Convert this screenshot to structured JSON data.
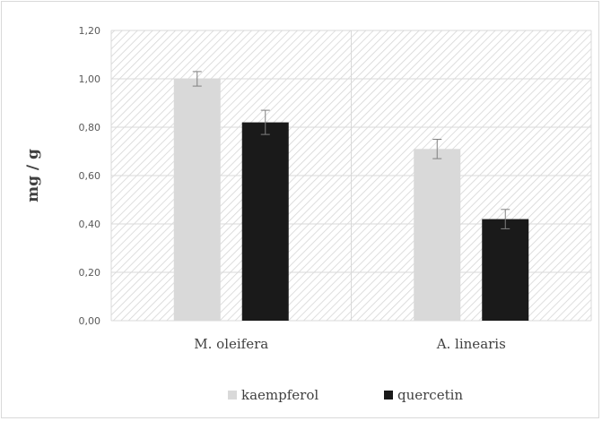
{
  "chart_data": {
    "type": "bar",
    "title": "",
    "xlabel": "",
    "ylabel": "mg / g",
    "ylim": [
      0,
      1.2
    ],
    "yticks": [
      "0,00",
      "0,20",
      "0,40",
      "0,60",
      "0,80",
      "1,00",
      "1,20"
    ],
    "categories": [
      "M. oleifera",
      "A. linearis"
    ],
    "series": [
      {
        "name": "kaempferol",
        "color": "#d9d9d9",
        "values": [
          1.0,
          0.71
        ],
        "errors": [
          0.03,
          0.04
        ]
      },
      {
        "name": "quercetin",
        "color": "#1a1a1a",
        "values": [
          0.82,
          0.42
        ],
        "errors": [
          0.05,
          0.04
        ]
      }
    ],
    "grid": true,
    "background_pattern": "diagonal-hatch",
    "legend_placement": "bottom"
  }
}
